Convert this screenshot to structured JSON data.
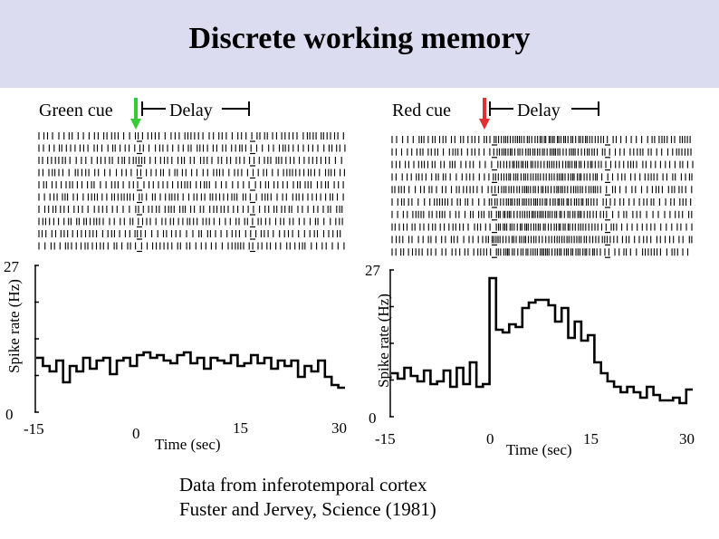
{
  "slide": {
    "title": "Discrete working memory",
    "caption_line1": "Data from inferotemporal cortex",
    "caption_line2": "Fuster and Jervey, Science (1981)"
  },
  "colors": {
    "title_band": "#dcdcf0",
    "green_arrow": "#33cc33",
    "red_arrow": "#e03030"
  },
  "chart_data": [
    {
      "type": "line",
      "cue_label": "Green cue",
      "delay_label": "Delay",
      "cue_arrow_color": "green",
      "raster_trials": 10,
      "xlabel": "Time (sec)",
      "ylabel": "Spike rate (Hz)",
      "xlim": [
        -15,
        30
      ],
      "ylim": [
        0,
        27
      ],
      "xticks": [
        "-15",
        "0",
        "15",
        "30"
      ],
      "yticks": [
        "0",
        "27"
      ],
      "step": true,
      "x": [
        -15,
        -14,
        -13,
        -12,
        -11,
        -10,
        -9,
        -8,
        -7,
        -6,
        -5,
        -4,
        -3,
        -2,
        -1,
        0,
        1,
        2,
        3,
        4,
        5,
        6,
        7,
        8,
        9,
        10,
        11,
        12,
        13,
        14,
        15,
        16,
        17,
        18,
        19,
        20,
        21,
        22,
        23,
        24,
        25,
        26,
        27,
        28,
        29,
        30
      ],
      "values": [
        10,
        8.5,
        7.5,
        9.5,
        5.5,
        8.5,
        7.5,
        10,
        8,
        9.5,
        10,
        7,
        9.5,
        10,
        8.5,
        10.5,
        11,
        10,
        10.5,
        9.5,
        9,
        10.5,
        11,
        9,
        10,
        8,
        10,
        9.5,
        9,
        10.5,
        8.5,
        9,
        10.5,
        9,
        10,
        8,
        9.5,
        8.5,
        9.5,
        6.5,
        8.5,
        7.5,
        9.5,
        6.5,
        5,
        4.5
      ]
    },
    {
      "type": "line",
      "cue_label": "Red cue",
      "delay_label": "Delay",
      "cue_arrow_color": "red",
      "raster_trials": 10,
      "xlabel": "Time (sec)",
      "ylabel": "Spike rate (Hz)",
      "xlim": [
        -15,
        30
      ],
      "ylim": [
        0,
        27
      ],
      "xticks": [
        "-15",
        "0",
        "15",
        "30"
      ],
      "yticks": [
        "0",
        "27"
      ],
      "step": true,
      "x": [
        -15,
        -14,
        -13,
        -12,
        -11,
        -10,
        -9,
        -8,
        -7,
        -6,
        -5,
        -4,
        -3,
        -2,
        -1,
        0,
        1,
        2,
        3,
        4,
        5,
        6,
        7,
        8,
        9,
        10,
        11,
        12,
        13,
        14,
        15,
        16,
        17,
        18,
        19,
        20,
        21,
        22,
        23,
        24,
        25,
        26,
        27,
        28,
        29,
        30
      ],
      "values": [
        8,
        7,
        9,
        7.5,
        6.5,
        8.5,
        6,
        6.5,
        8.5,
        5.5,
        9,
        6,
        10,
        5.5,
        6,
        25.5,
        16,
        15.5,
        17,
        16.5,
        20,
        21,
        21.5,
        21.5,
        20.5,
        17.5,
        20,
        14.5,
        17.5,
        14,
        15,
        10,
        8,
        6.5,
        5.5,
        4.5,
        5.5,
        4.5,
        3.5,
        5.5,
        4,
        3,
        3,
        3.5,
        2.5,
        5
      ]
    }
  ]
}
